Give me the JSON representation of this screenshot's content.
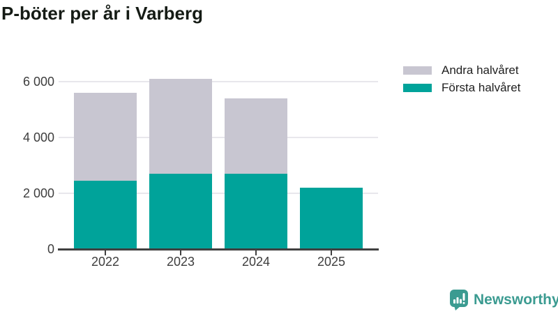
{
  "title": "P-böter per år i Varberg",
  "chart_data": {
    "type": "bar",
    "stacked": true,
    "title": "P-böter per år i Varberg",
    "categories": [
      "2022",
      "2023",
      "2024",
      "2025"
    ],
    "series": [
      {
        "name": "Första halvåret",
        "color": "#00a39a",
        "values": [
          2450,
          2700,
          2700,
          2200
        ]
      },
      {
        "name": "Andra halvåret",
        "color": "#c8c6d1",
        "values": [
          3150,
          3400,
          2700,
          0
        ]
      }
    ],
    "xlabel": "",
    "ylabel": "",
    "ylim": [
      0,
      6000
    ],
    "yticks": [
      {
        "value": 0,
        "label": "0"
      },
      {
        "value": 2000,
        "label": "2 000"
      },
      {
        "value": 4000,
        "label": "4 000"
      },
      {
        "value": 6000,
        "label": "6 000"
      }
    ],
    "grid": true,
    "legend_position": "top-right"
  },
  "legend": {
    "items": [
      {
        "label": "Andra halvåret",
        "color": "#c8c6d1"
      },
      {
        "label": "Första halvåret",
        "color": "#00a39a"
      }
    ]
  },
  "branding": {
    "logo_text": "Newsworthy",
    "logo_icon": "newsworthy-bars-speech-bubble-icon",
    "color": "#3b9b91"
  },
  "colors": {
    "first_half": "#00a39a",
    "second_half": "#c8c6d1",
    "gridline": "#e8e7ec",
    "axis": "#404040",
    "axis_text": "#3d3d3d",
    "title_text": "#151b15"
  }
}
